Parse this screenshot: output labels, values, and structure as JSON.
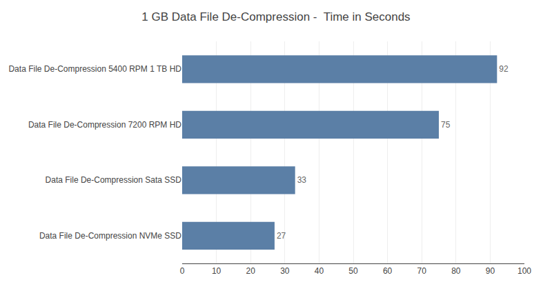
{
  "chart_data": {
    "type": "bar",
    "orientation": "horizontal",
    "title": "1 GB Data File De-Compression -  Time in Seconds",
    "categories": [
      "Data File De-Compression NVMe SSD",
      "Data File De-Compression Sata SSD",
      "Data File De-Compression 7200 RPM HD",
      "Data File De-Compression 5400 RPM 1 TB HD"
    ],
    "values": [
      27,
      33,
      75,
      92
    ],
    "color": "#5b7fa6",
    "xlim": [
      0,
      100
    ],
    "xticks": [
      0,
      10,
      20,
      30,
      40,
      50,
      60,
      70,
      80,
      90,
      100
    ],
    "grid": true,
    "data_labels": true
  }
}
